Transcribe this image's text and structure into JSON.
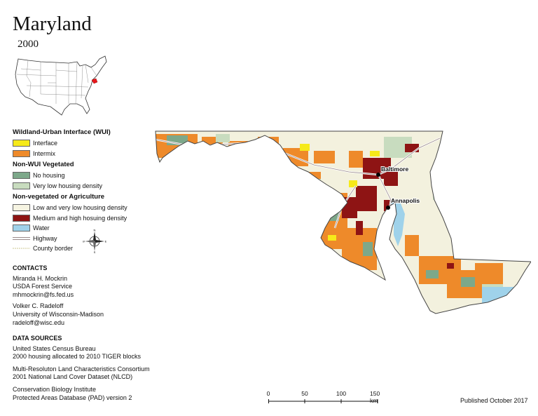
{
  "title": "Maryland",
  "year": "2000",
  "locator_icon": "us-locator-map",
  "legend": {
    "wui_heading": "Wildland-Urban Interface (WUI)",
    "wui_items": [
      {
        "label": "Interface",
        "color": "#f6ea1a"
      },
      {
        "label": "Intermix",
        "color": "#ee8a2a"
      }
    ],
    "nonwui_heading": "Non-WUI Vegetated",
    "nonwui_items": [
      {
        "label": "No housing",
        "color": "#7da88a"
      },
      {
        "label": "Very low housing density",
        "color": "#c8dcbf"
      }
    ],
    "nonveg_heading": "Non-vegetated or Agriculture",
    "nonveg_items": [
      {
        "label": "Low and very low housing density",
        "color": "#f6f4e2"
      },
      {
        "label": "Medium and high hosuing density",
        "color": "#8e1414"
      },
      {
        "label": "Water",
        "color": "#9fd2ea"
      }
    ],
    "highway_label": "Highway",
    "county_label": "County border"
  },
  "compass": {
    "icon": "compass-rose-icon",
    "n": "N",
    "s": "S",
    "e": "E",
    "w": "W"
  },
  "contacts": {
    "heading": "CONTACTS",
    "person1": [
      "Miranda H. Mockrin",
      "USDA Forest Service",
      "mhmockrin@fs.fed.us"
    ],
    "person2": [
      "Volker C. Radeloff",
      "University of Wisconsin-Madison",
      "radeloff@wisc.edu"
    ]
  },
  "sources": {
    "heading": "DATA SOURCES",
    "s1": [
      "United States Census Bureau",
      "2000 housing allocated to 2010 TIGER blocks"
    ],
    "s2": [
      "Multi-Resoluton Land Characteristics Consortium",
      "2001 National Land Cover Dataset (NLCD)"
    ],
    "s3": [
      "Conservation Biology Institute",
      "Protected Areas Database (PAD) version 2"
    ]
  },
  "cities": [
    {
      "name": "Baltimore"
    },
    {
      "name": "Annapolis"
    }
  ],
  "scale": {
    "ticks": [
      "0",
      "50",
      "100",
      "150 km"
    ]
  },
  "published": "Published October 2017"
}
